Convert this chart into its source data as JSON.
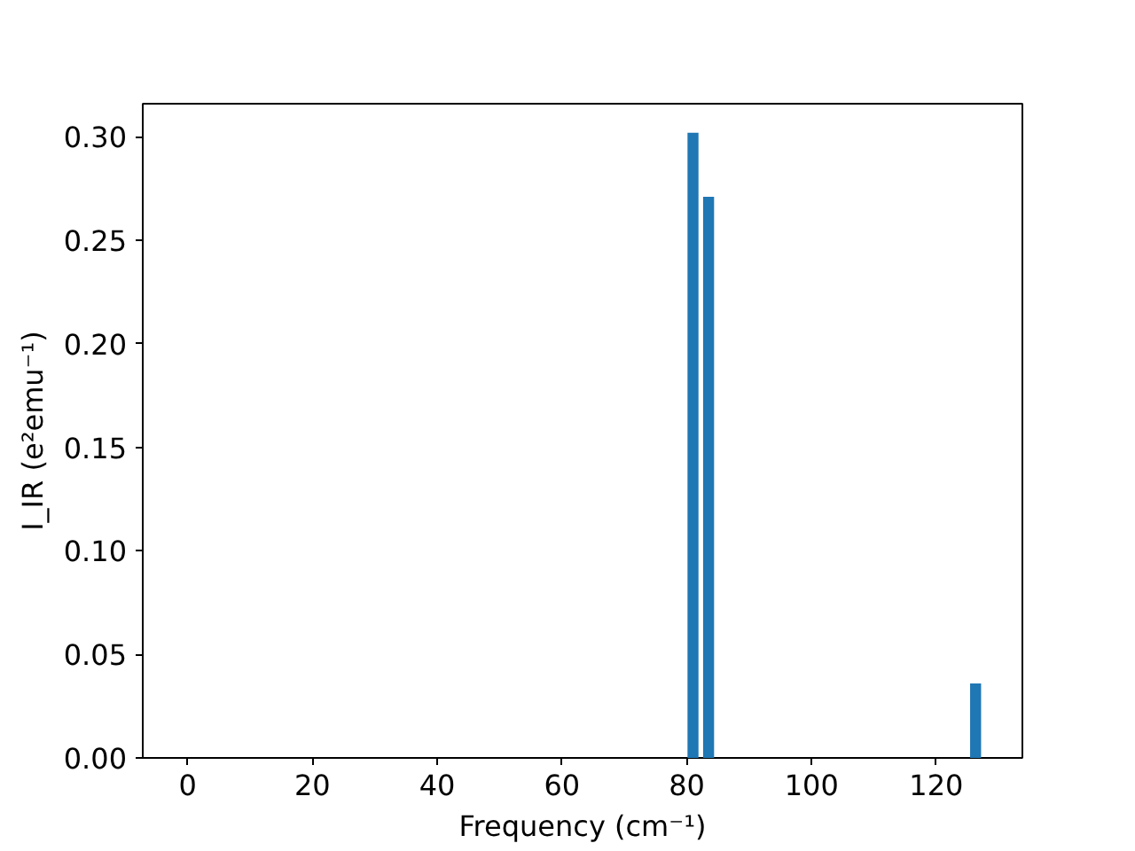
{
  "chart_data": {
    "type": "bar",
    "xlabel": "Frequency (cm⁻¹)",
    "ylabel": "I_IR (e²emu⁻¹)",
    "x": [
      81.0,
      83.5,
      126.3
    ],
    "values": [
      0.302,
      0.271,
      0.036
    ],
    "color": "#1f77b4",
    "xlim": [
      -7.2,
      133.8
    ],
    "ylim": [
      0,
      0.316
    ],
    "xticks": [
      0,
      20,
      40,
      60,
      80,
      100,
      120
    ],
    "yticks": [
      {
        "value": 0,
        "label": "0.00"
      },
      {
        "value": 0.05,
        "label": "0.05"
      },
      {
        "value": 0.1,
        "label": "0.10"
      },
      {
        "value": 0.15,
        "label": "0.15"
      },
      {
        "value": 0.2,
        "label": "0.20"
      },
      {
        "value": 0.25,
        "label": "0.25"
      },
      {
        "value": 0.3,
        "label": "0.30"
      }
    ],
    "grid": false
  }
}
